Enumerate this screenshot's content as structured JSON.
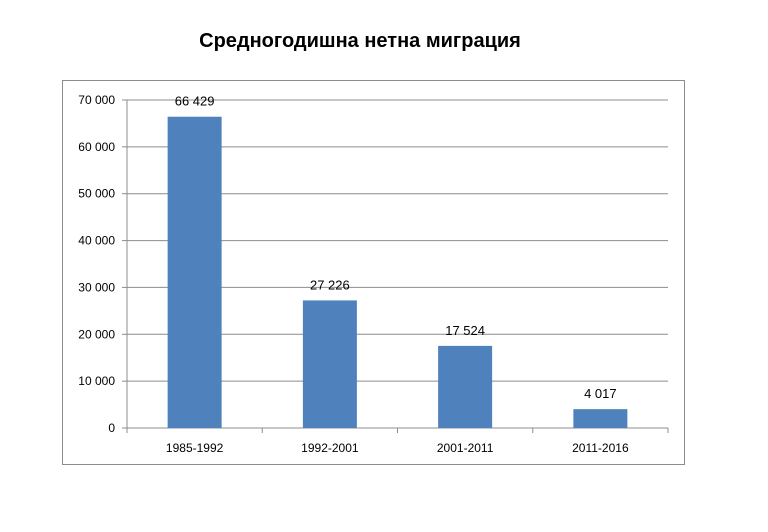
{
  "chart_data": {
    "type": "bar",
    "title": "Средногодишна нетна миграция",
    "categories": [
      "1985-1992",
      "1992-2001",
      "2001-2011",
      "2011-2016"
    ],
    "values": [
      66429,
      27226,
      17524,
      4017
    ],
    "value_labels": [
      "66 429",
      "27 226",
      "17 524",
      "4 017"
    ],
    "y_ticks": [
      0,
      10000,
      20000,
      30000,
      40000,
      50000,
      60000,
      70000
    ],
    "y_tick_labels": [
      "0",
      "10 000",
      "20 000",
      "30 000",
      "40 000",
      "50 000",
      "60 000",
      "70 000"
    ],
    "ylim": [
      0,
      70000
    ],
    "grid": true,
    "legend": "none",
    "bar_color": "#4f81bd",
    "grid_color": "#8c8c8c"
  }
}
